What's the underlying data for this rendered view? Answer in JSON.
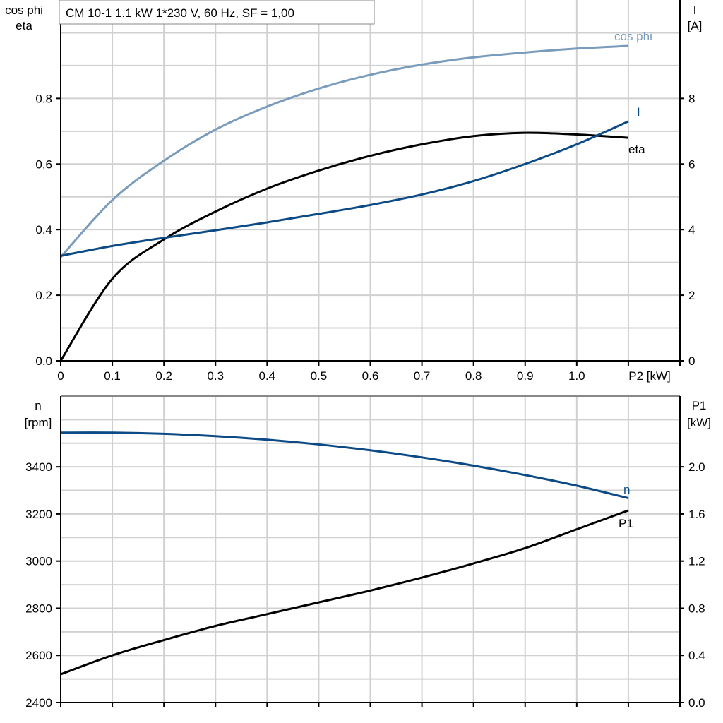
{
  "colors": {
    "cos_phi": "#7a9cbc",
    "I": "#0b4a85",
    "n": "#0b4a85",
    "eta": "#000000",
    "P1": "#000000",
    "grid": "#d0d0d0"
  },
  "chart_data": [
    {
      "type": "line",
      "title": "CM 10-1   1.1 kW   1*230 V, 60 Hz, SF = 1,00",
      "xlabel": "P2 [kW]",
      "ylabel_left": [
        "cos phi",
        "eta"
      ],
      "ylabel_right": [
        "I",
        "[A]"
      ],
      "xlim": [
        0,
        1.2
      ],
      "ylim_left": [
        0,
        1.1
      ],
      "ylim_right": [
        0,
        11
      ],
      "grid": true,
      "x_ticks": [
        "0",
        "0.1",
        "0.2",
        "0.3",
        "0.4",
        "0.5",
        "0.6",
        "0.7",
        "0.8",
        "0.9",
        "1.0"
      ],
      "y_ticks_left": [
        "0.0",
        "0.2",
        "0.4",
        "0.6",
        "0.8"
      ],
      "y_ticks_right": [
        "0",
        "2",
        "4",
        "6",
        "8"
      ],
      "x": [
        0,
        0.1,
        0.2,
        0.3,
        0.4,
        0.5,
        0.6,
        0.7,
        0.8,
        0.9,
        1.0,
        1.1
      ],
      "series": [
        {
          "name": "cos phi",
          "axis": "left",
          "values": [
            0.316,
            0.49,
            0.61,
            0.705,
            0.775,
            0.83,
            0.872,
            0.903,
            0.925,
            0.94,
            0.952,
            0.96
          ]
        },
        {
          "name": "eta",
          "axis": "left",
          "values": [
            0,
            0.25,
            0.37,
            0.455,
            0.525,
            0.58,
            0.625,
            0.66,
            0.685,
            0.695,
            0.69,
            0.68
          ]
        },
        {
          "name": "I",
          "axis": "right",
          "values": [
            3.2,
            3.5,
            3.75,
            3.98,
            4.22,
            4.48,
            4.75,
            5.07,
            5.48,
            6.0,
            6.6,
            7.3
          ]
        }
      ]
    },
    {
      "type": "line",
      "ylabel_left": [
        "n",
        "[rpm]"
      ],
      "ylabel_right": [
        "P1",
        "[kW]"
      ],
      "xlim": [
        0,
        1.2
      ],
      "ylim_left": [
        2400,
        3700
      ],
      "ylim_right": [
        0,
        2.6
      ],
      "grid": true,
      "y_ticks_left": [
        "2400",
        "2600",
        "2800",
        "3000",
        "3200",
        "3400"
      ],
      "y_ticks_right": [
        "0.0",
        "0.4",
        "0.8",
        "1.2",
        "1.6",
        "2.0"
      ],
      "x": [
        0,
        0.1,
        0.2,
        0.3,
        0.4,
        0.5,
        0.6,
        0.7,
        0.8,
        0.9,
        1.0,
        1.1
      ],
      "series": [
        {
          "name": "n",
          "axis": "left",
          "values": [
            3545,
            3545,
            3540,
            3530,
            3515,
            3495,
            3470,
            3440,
            3405,
            3365,
            3320,
            3267
          ]
        },
        {
          "name": "P1",
          "axis": "right",
          "values": [
            0.24,
            0.4,
            0.53,
            0.65,
            0.75,
            0.85,
            0.95,
            1.06,
            1.18,
            1.31,
            1.47,
            1.63
          ]
        }
      ]
    }
  ]
}
